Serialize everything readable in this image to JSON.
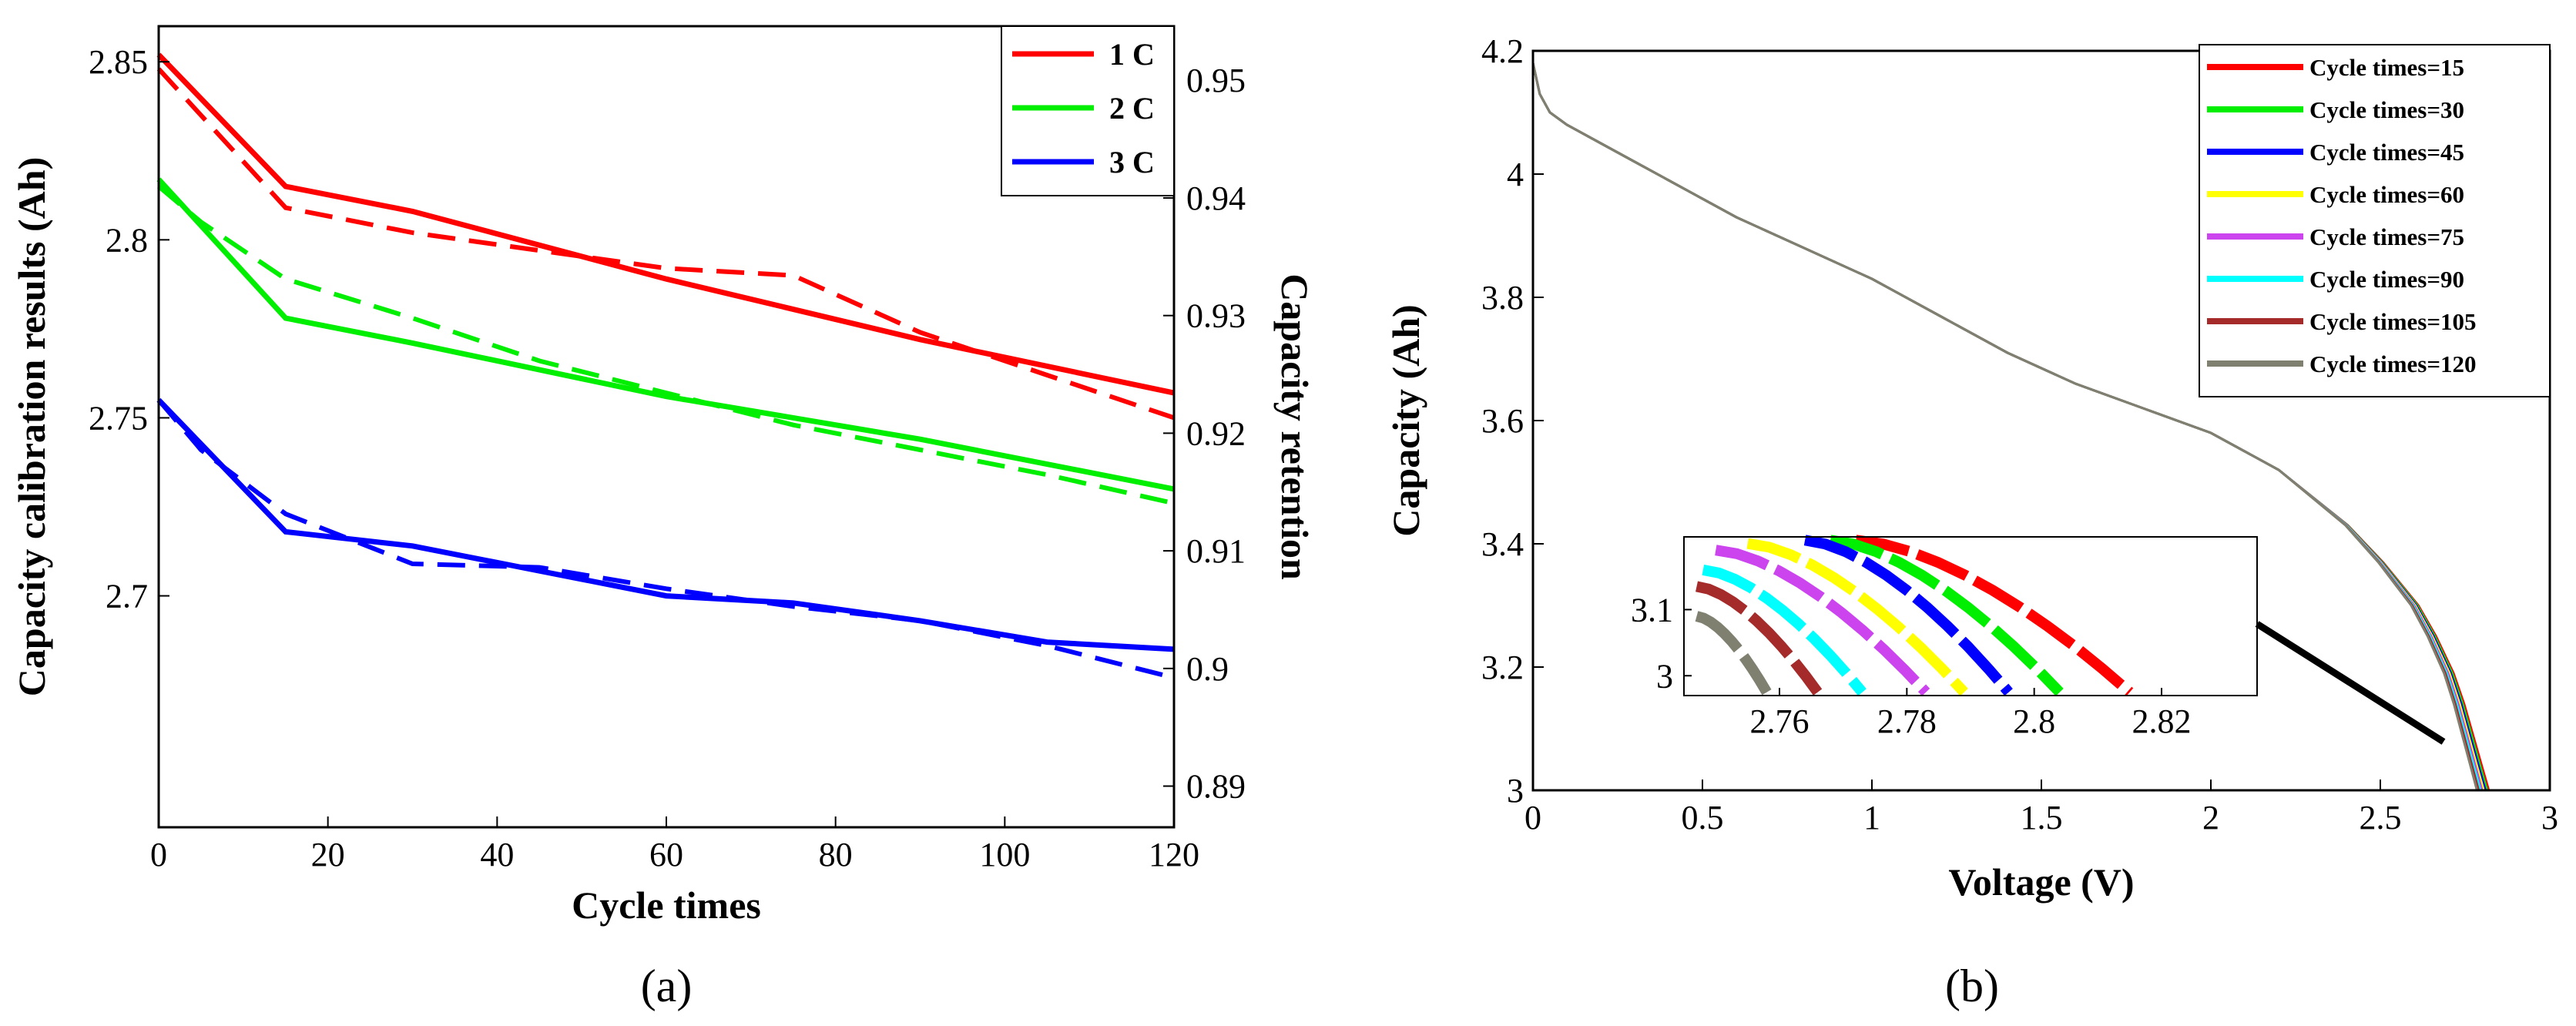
{
  "chart_data": [
    {
      "id": "a",
      "type": "line",
      "panel_label": "(a)",
      "xlabel": "Cycle times",
      "ylabel": "Capacity calibration results (Ah)",
      "y2label": "Capacity retention",
      "xlim": [
        0,
        120
      ],
      "ylim": [
        2.635,
        2.86
      ],
      "y2lim": [
        0.8865,
        0.9546
      ],
      "x_ticks": [
        0,
        20,
        40,
        60,
        80,
        100,
        120
      ],
      "y_ticks": [
        2.7,
        2.75,
        2.8,
        2.85
      ],
      "y2_ticks": [
        0.89,
        0.9,
        0.91,
        0.92,
        0.93,
        0.94,
        0.95
      ],
      "legend": [
        "1 C",
        "2 C",
        "3 C"
      ],
      "legend_position": "top-right",
      "series": [
        {
          "name": "1 C",
          "color": "#ff0000",
          "solid": {
            "x": [
              0,
              15,
              30,
              60,
              90,
              120
            ],
            "y": [
              2.852,
              2.815,
              2.808,
              2.789,
              2.772,
              2.757
            ]
          },
          "dashed": {
            "x": [
              0,
              5,
              15,
              30,
              45,
              60,
              75,
              90,
              105,
              120
            ],
            "y": [
              2.848,
              2.835,
              2.809,
              2.802,
              2.797,
              2.792,
              2.79,
              2.774,
              2.762,
              2.75
            ]
          }
        },
        {
          "name": "2 C",
          "color": "#00ee00",
          "solid": {
            "x": [
              0,
              15,
              30,
              60,
              90,
              120
            ],
            "y": [
              2.817,
              2.778,
              2.771,
              2.756,
              2.744,
              2.73
            ]
          },
          "dashed": {
            "x": [
              0,
              5,
              15,
              30,
              45,
              60,
              75,
              90,
              105,
              120
            ],
            "y": [
              2.815,
              2.805,
              2.789,
              2.778,
              2.766,
              2.757,
              2.748,
              2.741,
              2.734,
              2.726
            ]
          }
        },
        {
          "name": "3 C",
          "color": "#0000ff",
          "solid": {
            "x": [
              0,
              15,
              30,
              60,
              75,
              90,
              105,
              120
            ],
            "y": [
              2.755,
              2.718,
              2.714,
              2.7,
              2.698,
              2.693,
              2.687,
              2.685
            ]
          },
          "dashed": {
            "x": [
              0,
              5,
              15,
              30,
              45,
              60,
              75,
              90,
              105,
              120
            ],
            "y": [
              2.755,
              2.741,
              2.723,
              2.709,
              2.708,
              2.702,
              2.697,
              2.693,
              2.686,
              2.677
            ]
          }
        }
      ]
    },
    {
      "id": "b",
      "type": "line",
      "panel_label": "(b)",
      "xlabel": "Voltage (V)",
      "ylabel": "Capacity (Ah)",
      "xlim": [
        0,
        3
      ],
      "ylim": [
        3,
        4.2
      ],
      "x_ticks": [
        0,
        0.5,
        1,
        1.5,
        2,
        2.5,
        3
      ],
      "x_tick_labels": [
        "0",
        "0.5",
        "1",
        "1.5",
        "2",
        "2.5",
        "3"
      ],
      "y_ticks": [
        3,
        3.2,
        3.4,
        3.6,
        3.8,
        4,
        4.2
      ],
      "y_tick_labels": [
        "3",
        "3.2",
        "3.4",
        "3.6",
        "3.8",
        "4",
        "4.2"
      ],
      "legend_position": "top-right",
      "curve_base": {
        "x": [
          0,
          0.02,
          0.05,
          0.1,
          0.2,
          0.3,
          0.4,
          0.5,
          0.6,
          0.8,
          1.0,
          1.2,
          1.4,
          1.6,
          1.8,
          2.0,
          2.2,
          2.4,
          2.5,
          2.6,
          2.65,
          2.7,
          2.73,
          2.76,
          2.78,
          2.8
        ],
        "y": [
          4.18,
          4.13,
          4.1,
          4.08,
          4.05,
          4.02,
          3.99,
          3.96,
          3.93,
          3.88,
          3.83,
          3.77,
          3.71,
          3.66,
          3.62,
          3.58,
          3.52,
          3.43,
          3.37,
          3.3,
          3.25,
          3.19,
          3.14,
          3.08,
          3.04,
          3.0
        ]
      },
      "series": [
        {
          "name": "Cycle times=15",
          "color": "#ff0000",
          "x_shift": 0.02
        },
        {
          "name": "Cycle times=30",
          "color": "#00ee00",
          "x_shift": 0.015
        },
        {
          "name": "Cycle times=45",
          "color": "#0000ff",
          "x_shift": 0.01
        },
        {
          "name": "Cycle times=60",
          "color": "#ffff00",
          "x_shift": 0.005
        },
        {
          "name": "Cycle times=75",
          "color": "#cc44ee",
          "x_shift": 0.0
        },
        {
          "name": "Cycle times=90",
          "color": "#00ffff",
          "x_shift": -0.005
        },
        {
          "name": "Cycle times=105",
          "color": "#a52a2a",
          "x_shift": -0.01
        },
        {
          "name": "Cycle times=120",
          "color": "#808070",
          "x_shift": -0.015
        }
      ],
      "inset": {
        "xlim": [
          2.745,
          2.835
        ],
        "ylim": [
          2.97,
          3.21
        ],
        "x_ticks": [
          2.76,
          2.78,
          2.8,
          2.82
        ],
        "x_tick_labels": [
          "2.76",
          "2.78",
          "2.8",
          "2.82"
        ],
        "y_ticks": [
          3,
          3.1
        ],
        "y_tick_labels": [
          "3",
          "3.1"
        ],
        "arcs": [
          {
            "color": "#ff0000",
            "x0": 2.772,
            "x1": 2.815,
            "y0": 3.205
          },
          {
            "color": "#00ee00",
            "x0": 2.768,
            "x1": 2.804,
            "y0": 3.205
          },
          {
            "color": "#0000ff",
            "x0": 2.764,
            "x1": 2.796,
            "y0": 3.205
          },
          {
            "color": "#ffff00",
            "x0": 2.755,
            "x1": 2.789,
            "y0": 3.2
          },
          {
            "color": "#cc44ee",
            "x0": 2.75,
            "x1": 2.783,
            "y0": 3.19
          },
          {
            "color": "#00ffff",
            "x0": 2.748,
            "x1": 2.773,
            "y0": 3.16
          },
          {
            "color": "#a52a2a",
            "x0": 2.747,
            "x1": 2.766,
            "y0": 3.135
          },
          {
            "color": "#808070",
            "x0": 2.747,
            "x1": 2.758,
            "y0": 3.09
          }
        ]
      }
    }
  ]
}
